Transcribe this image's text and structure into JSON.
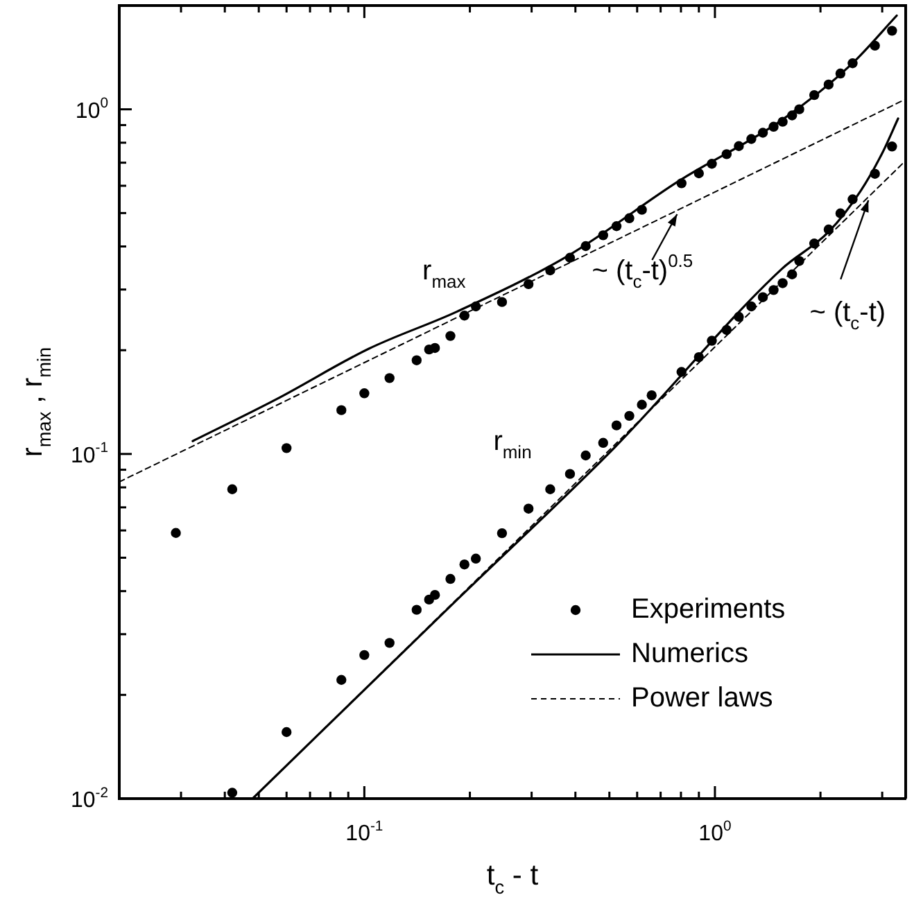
{
  "chart_data": {
    "type": "line",
    "xlabel": "t$_{c}$ - t",
    "ylabel": "r$_{max}$ , r$_{min}$",
    "log": "xy",
    "legend": "bottom right",
    "xlim": [
      0.02,
      3.5
    ],
    "ylim": [
      0.01,
      2
    ],
    "xticks": [
      {
        "value": 0.03,
        "label": null
      },
      {
        "value": 0.04,
        "label": null
      },
      {
        "value": 0.05,
        "label": null
      },
      {
        "value": 0.06,
        "label": null
      },
      {
        "value": 0.07,
        "label": null
      },
      {
        "value": 0.08,
        "label": null
      },
      {
        "value": 0.09,
        "label": null
      },
      {
        "value": 0.1,
        "label": "10$^{-1}$"
      },
      {
        "value": 0.2,
        "label": null
      },
      {
        "value": 0.3,
        "label": null
      },
      {
        "value": 0.4,
        "label": null
      },
      {
        "value": 0.5,
        "label": null
      },
      {
        "value": 0.6,
        "label": null
      },
      {
        "value": 0.7,
        "label": null
      },
      {
        "value": 0.8,
        "label": null
      },
      {
        "value": 0.9,
        "label": null
      },
      {
        "value": 1,
        "label": "10$^{0}$"
      },
      {
        "value": 2,
        "label": null
      },
      {
        "value": 3,
        "label": null
      }
    ],
    "yticks": [
      {
        "value": 0.01,
        "label": "10$^{-2}$"
      },
      {
        "value": 0.02,
        "label": null
      },
      {
        "value": 0.03,
        "label": null
      },
      {
        "value": 0.04,
        "label": null
      },
      {
        "value": 0.05,
        "label": null
      },
      {
        "value": 0.06,
        "label": null
      },
      {
        "value": 0.07,
        "label": null
      },
      {
        "value": 0.08,
        "label": null
      },
      {
        "value": 0.09,
        "label": null
      },
      {
        "value": 0.1,
        "label": "10$^{-1}$"
      },
      {
        "value": 0.2,
        "label": null
      },
      {
        "value": 0.3,
        "label": null
      },
      {
        "value": 0.4,
        "label": null
      },
      {
        "value": 0.5,
        "label": null
      },
      {
        "value": 0.6,
        "label": null
      },
      {
        "value": 0.7,
        "label": null
      },
      {
        "value": 0.8,
        "label": null
      },
      {
        "value": 0.9,
        "label": null
      },
      {
        "value": 1,
        "label": "10$^{0}$"
      }
    ],
    "annotations": [
      "r$_{max}$",
      "r$_{min}$",
      {
        "text": "~ (t$_{c}$-t)$^{0.5}$",
        "x": 0.78,
        "y": 0.51
      },
      {
        "text": "~ (t$_{c}$-t)",
        "x": 2.74,
        "y": 0.56
      }
    ],
    "series": [
      {
        "name": "Experiments",
        "type": "scatter",
        "color": "#000000",
        "marker": "circle",
        "x": [
          0.029,
          0.042,
          0.06,
          0.086,
          0.1,
          0.118,
          0.141,
          0.153,
          0.159,
          0.176,
          0.193,
          0.208,
          0.247,
          0.294,
          0.339,
          0.386,
          0.428,
          0.48,
          0.524,
          0.57,
          0.619,
          0.803,
          0.9,
          0.98,
          1.08,
          1.17,
          1.27,
          1.37,
          1.47,
          1.56,
          1.66,
          1.74,
          1.92,
          2.11,
          2.28,
          2.47,
          2.86,
          3.2,
          0.042,
          0.06,
          0.086,
          0.1,
          0.118,
          0.141,
          0.153,
          0.159,
          0.176,
          0.193,
          0.208,
          0.247,
          0.294,
          0.339,
          0.386,
          0.428,
          0.48,
          0.524,
          0.57,
          0.619,
          0.66,
          0.803,
          0.9,
          0.98,
          1.08,
          1.17,
          1.27,
          1.37,
          1.47,
          1.56,
          1.66,
          1.74,
          1.92,
          2.11,
          2.28,
          2.47,
          2.86,
          3.2
        ],
        "values": [
          0.059,
          0.079,
          0.104,
          0.134,
          0.15,
          0.166,
          0.187,
          0.201,
          0.203,
          0.22,
          0.252,
          0.268,
          0.276,
          0.311,
          0.341,
          0.371,
          0.401,
          0.431,
          0.458,
          0.483,
          0.511,
          0.61,
          0.652,
          0.695,
          0.741,
          0.782,
          0.82,
          0.855,
          0.89,
          0.92,
          0.96,
          1.0,
          1.1,
          1.18,
          1.27,
          1.36,
          1.53,
          1.69,
          0.0104,
          0.0156,
          0.0221,
          0.0261,
          0.0283,
          0.0353,
          0.0378,
          0.039,
          0.0434,
          0.0478,
          0.0497,
          0.0589,
          0.0694,
          0.079,
          0.0875,
          0.099,
          0.1077,
          0.121,
          0.129,
          0.139,
          0.148,
          0.173,
          0.191,
          0.213,
          0.229,
          0.25,
          0.268,
          0.285,
          0.299,
          0.313,
          0.332,
          0.363,
          0.408,
          0.448,
          0.499,
          0.548,
          0.65,
          0.78
        ]
      },
      {
        "name": "Numerics",
        "type": "line",
        "color": "#000000",
        "marker": "none",
        "line_style": "solid",
        "x": [
          0.0324,
          0.056,
          0.103,
          0.184,
          0.383,
          0.79,
          1.55,
          2.45,
          3.3
        ],
        "values": [
          0.109,
          0.144,
          0.202,
          0.259,
          0.377,
          0.62,
          0.93,
          1.35,
          1.87
        ]
      },
      {
        "type": "line",
        "color": "#000000",
        "marker": "none",
        "line_style": "solid",
        "x": [
          0.048,
          0.184,
          0.52,
          1.55,
          2.11,
          2.61,
          3.0,
          3.33
        ],
        "values": [
          0.01,
          0.0378,
          0.105,
          0.344,
          0.441,
          0.582,
          0.746,
          0.94
        ]
      },
      {
        "name": "Power laws",
        "type": "line",
        "color": "#000000",
        "marker": "none",
        "line_style": "dashed",
        "x": [
          0.02,
          3.5
        ],
        "values": [
          0.083,
          1.07
        ]
      },
      {
        "type": "line",
        "color": "#000000",
        "marker": "none",
        "line_style": "dashed",
        "x": [
          0.048,
          3.5
        ],
        "values": [
          0.01,
          0.71
        ]
      }
    ]
  }
}
